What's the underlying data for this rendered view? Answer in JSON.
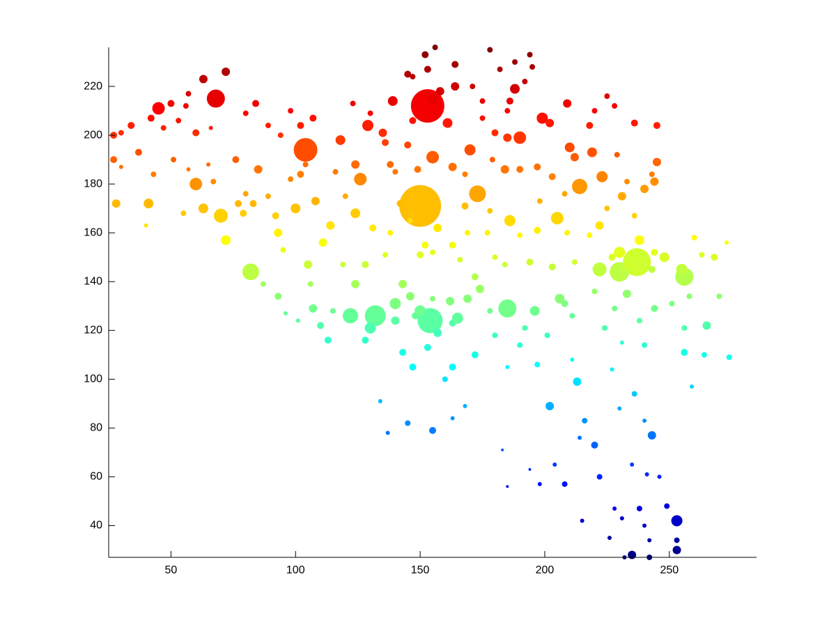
{
  "chart_data": {
    "type": "scatter",
    "colormap": "jet",
    "xlim": [
      25,
      285
    ],
    "ylim": [
      27,
      236
    ],
    "xticks": [
      50,
      100,
      150,
      200,
      250
    ],
    "yticks": [
      40,
      60,
      80,
      100,
      120,
      140,
      160,
      180,
      200,
      220
    ],
    "x": [
      45,
      68,
      72,
      63,
      104,
      153,
      150,
      173,
      214,
      185,
      154,
      132,
      122,
      82,
      72,
      70,
      60,
      41,
      28,
      100,
      126,
      129,
      135,
      139,
      155,
      170,
      190,
      199,
      209,
      210,
      219,
      223,
      231,
      245,
      245,
      244,
      222,
      230,
      237,
      230,
      238,
      256,
      255,
      248,
      205,
      186,
      253,
      253,
      253,
      243,
      235,
      213,
      202,
      220,
      222,
      208,
      238,
      249,
      155,
      145,
      134,
      137,
      163,
      168,
      160,
      147,
      163,
      172,
      185,
      197,
      211,
      230,
      236,
      240,
      216,
      214,
      204,
      198,
      215,
      228,
      231,
      240,
      226,
      242,
      232,
      242,
      235,
      246,
      241,
      183,
      185,
      194,
      128,
      143,
      153,
      157,
      163,
      165,
      148,
      140,
      130,
      113,
      110,
      107,
      115,
      96,
      101,
      124,
      143,
      162,
      169,
      174,
      155,
      150,
      140,
      146,
      180,
      190,
      201,
      206,
      208,
      224,
      220,
      228,
      238,
      244,
      251,
      256,
      265,
      270,
      258,
      264,
      274,
      256,
      259,
      231,
      240,
      227,
      211,
      196,
      192,
      178,
      87,
      93,
      106,
      105,
      119,
      128,
      136,
      150,
      155,
      166,
      172,
      180,
      184,
      194,
      203,
      212,
      227,
      263,
      268,
      273,
      260,
      244,
      243,
      233,
      93,
      95,
      111,
      114,
      124,
      131,
      138,
      146,
      152,
      157,
      163,
      169,
      177,
      190,
      197,
      209,
      218,
      222,
      40,
      55,
      63,
      79,
      92,
      77,
      83,
      108,
      120,
      142,
      168,
      178,
      198,
      208,
      225,
      236,
      240,
      243,
      30,
      37,
      43,
      51,
      57,
      67,
      76,
      85,
      98,
      102,
      104,
      116,
      124,
      138,
      140,
      149,
      163,
      168,
      179,
      184,
      190,
      197,
      203,
      212,
      229,
      233,
      27,
      65,
      80,
      89,
      27,
      30,
      34,
      47,
      53,
      56,
      60,
      66,
      50,
      42,
      57,
      80,
      84,
      89,
      94,
      98,
      102,
      107,
      118,
      123,
      130,
      136,
      145,
      147,
      155,
      158,
      161,
      164,
      164,
      171,
      175,
      186,
      188,
      188,
      182,
      178,
      192,
      194,
      195,
      185,
      180,
      185,
      175,
      147,
      153,
      152,
      156,
      145,
      218,
      225,
      228,
      220,
      236,
      202
    ],
    "y": [
      211,
      215,
      226,
      223,
      194,
      212,
      171,
      176,
      179,
      129,
      124,
      126,
      126,
      144,
      157,
      167,
      180,
      172,
      172,
      170,
      182,
      204,
      201,
      214,
      191,
      194,
      199,
      207,
      213,
      195,
      193,
      183,
      175,
      189,
      204,
      181,
      145,
      144,
      148,
      152,
      157,
      142,
      145,
      150,
      166,
      165,
      42,
      30,
      34,
      77,
      28,
      99,
      89,
      73,
      60,
      57,
      47,
      48,
      79,
      82,
      91,
      78,
      84,
      89,
      100,
      105,
      105,
      110,
      105,
      106,
      108,
      88,
      94,
      83,
      83,
      76,
      65,
      57,
      42,
      47,
      43,
      40,
      35,
      34,
      27,
      27,
      65,
      60,
      61,
      71,
      56,
      63,
      116,
      111,
      113,
      119,
      123,
      125,
      126,
      124,
      121,
      116,
      122,
      129,
      128,
      127,
      124,
      139,
      139,
      132,
      133,
      137,
      133,
      128,
      131,
      134,
      118,
      114,
      118,
      133,
      131,
      121,
      136,
      129,
      124,
      129,
      131,
      121,
      122,
      134,
      134,
      110,
      109,
      111,
      97,
      115,
      114,
      104,
      126,
      128,
      121,
      128,
      139,
      134,
      139,
      147,
      147,
      147,
      151,
      151,
      152,
      149,
      142,
      150,
      147,
      148,
      146,
      148,
      150,
      151,
      150,
      156,
      158,
      152,
      145,
      135,
      160,
      153,
      156,
      163,
      168,
      162,
      160,
      165,
      155,
      162,
      155,
      160,
      160,
      159,
      161,
      160,
      159,
      163,
      163,
      168,
      170,
      168,
      167,
      172,
      172,
      173,
      175,
      172,
      171,
      169,
      173,
      176,
      170,
      167,
      178,
      184,
      187,
      193,
      184,
      190,
      186,
      181,
      190,
      186,
      182,
      184,
      188,
      185,
      188,
      188,
      185,
      186,
      187,
      184,
      190,
      186,
      186,
      187,
      183,
      191,
      192,
      181,
      190,
      188,
      176,
      175,
      200,
      201,
      204,
      203,
      206,
      212,
      201,
      203,
      213,
      207,
      217,
      209,
      213,
      204,
      200,
      210,
      204,
      207,
      198,
      213,
      209,
      197,
      196,
      206,
      215,
      218,
      205,
      220,
      229,
      220,
      214,
      214,
      219,
      230,
      227,
      235,
      222,
      233,
      228,
      210,
      201,
      199,
      207,
      224,
      227,
      233,
      236,
      225,
      204,
      216,
      212,
      210,
      205,
      205
    ],
    "sizes": [
      324,
      676,
      144,
      144,
      1156,
      2304,
      3600,
      576,
      484,
      676,
      1296,
      900,
      484,
      576,
      196,
      400,
      324,
      196,
      144,
      196,
      324,
      256,
      144,
      196,
      324,
      256,
      324,
      256,
      144,
      196,
      196,
      256,
      144,
      144,
      100,
      144,
      400,
      784,
      1600,
      256,
      196,
      676,
      256,
      196,
      324,
      256,
      256,
      144,
      64,
      144,
      144,
      144,
      144,
      100,
      64,
      64,
      64,
      64,
      100,
      64,
      36,
      36,
      36,
      36,
      64,
      100,
      100,
      100,
      36,
      64,
      36,
      36,
      64,
      36,
      64,
      36,
      36,
      36,
      36,
      36,
      36,
      36,
      36,
      36,
      36,
      64,
      36,
      36,
      36,
      16,
      16,
      16,
      100,
      100,
      100,
      144,
      100,
      256,
      100,
      144,
      256,
      100,
      100,
      144,
      64,
      36,
      36,
      144,
      144,
      144,
      144,
      144,
      64,
      256,
      256,
      144,
      64,
      64,
      64,
      196,
      100,
      64,
      64,
      64,
      64,
      100,
      64,
      64,
      144,
      64,
      64,
      64,
      64,
      100,
      36,
      36,
      64,
      36,
      64,
      196,
      64,
      64,
      64,
      100,
      64,
      144,
      64,
      100,
      64,
      100,
      64,
      64,
      100,
      64,
      64,
      100,
      100,
      64,
      100,
      64,
      100,
      36,
      64,
      100,
      100,
      144,
      144,
      64,
      144,
      144,
      196,
      100,
      64,
      64,
      100,
      144,
      100,
      64,
      64,
      64,
      100,
      64,
      64,
      144,
      36,
      64,
      196,
      100,
      100,
      100,
      100,
      144,
      64,
      100,
      100,
      64,
      64,
      64,
      64,
      64,
      144,
      64,
      36,
      100,
      64,
      64,
      36,
      64,
      100,
      144,
      64,
      100,
      64,
      64,
      144,
      100,
      64,
      100,
      144,
      64,
      64,
      144,
      100,
      100,
      100,
      144,
      64,
      64,
      100,
      36,
      64,
      64,
      100,
      64,
      100,
      64,
      64,
      64,
      100,
      36,
      100,
      100,
      64,
      64,
      100,
      64,
      64,
      64,
      100,
      100,
      196,
      64,
      64,
      100,
      100,
      100,
      196,
      144,
      196,
      144,
      100,
      64,
      64,
      100,
      196,
      64,
      64,
      64,
      64,
      64,
      64,
      64,
      100,
      144,
      64,
      64,
      100,
      100,
      64,
      100,
      100,
      64,
      64,
      64,
      100,
      144
    ]
  }
}
